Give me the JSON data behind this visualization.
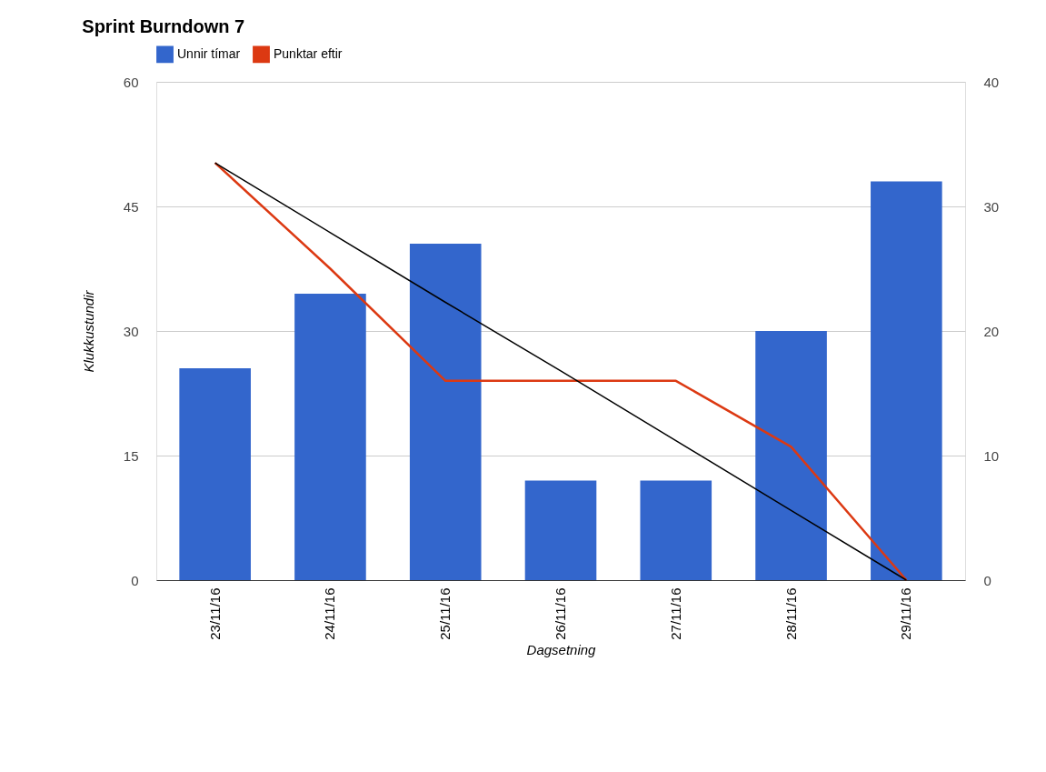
{
  "chart_data": {
    "type": "bar",
    "title": "Sprint Burndown 7",
    "xlabel": "Dagsetning",
    "ylabel": "Klukkustundir",
    "categories": [
      "23/11/16",
      "24/11/16",
      "25/11/16",
      "26/11/16",
      "27/11/16",
      "28/11/16",
      "29/11/16"
    ],
    "series": [
      {
        "name": "Unnir tímar",
        "color": "#3366cc",
        "values": [
          25.5,
          34.5,
          40.5,
          12,
          12,
          30,
          48
        ]
      },
      {
        "name": "Punktar eftir",
        "type": "line",
        "axis": "y2",
        "color": "#dc3912",
        "values": [
          33.5,
          25,
          16,
          16,
          16,
          10.7,
          0
        ]
      },
      {
        "type": "line",
        "axis": "y2",
        "color": "#000000",
        "values": [
          33.5,
          27.9,
          22.3,
          16.8,
          11.2,
          5.6,
          0
        ]
      }
    ],
    "ylim": [
      0,
      60
    ],
    "yticks": [
      0,
      15,
      30,
      45,
      60
    ],
    "y2lim": [
      0,
      40
    ],
    "y2ticks": [
      0,
      10,
      20,
      30,
      40
    ],
    "grid": "y",
    "legend": "top left",
    "marker": "none",
    "line_style": "solid"
  }
}
